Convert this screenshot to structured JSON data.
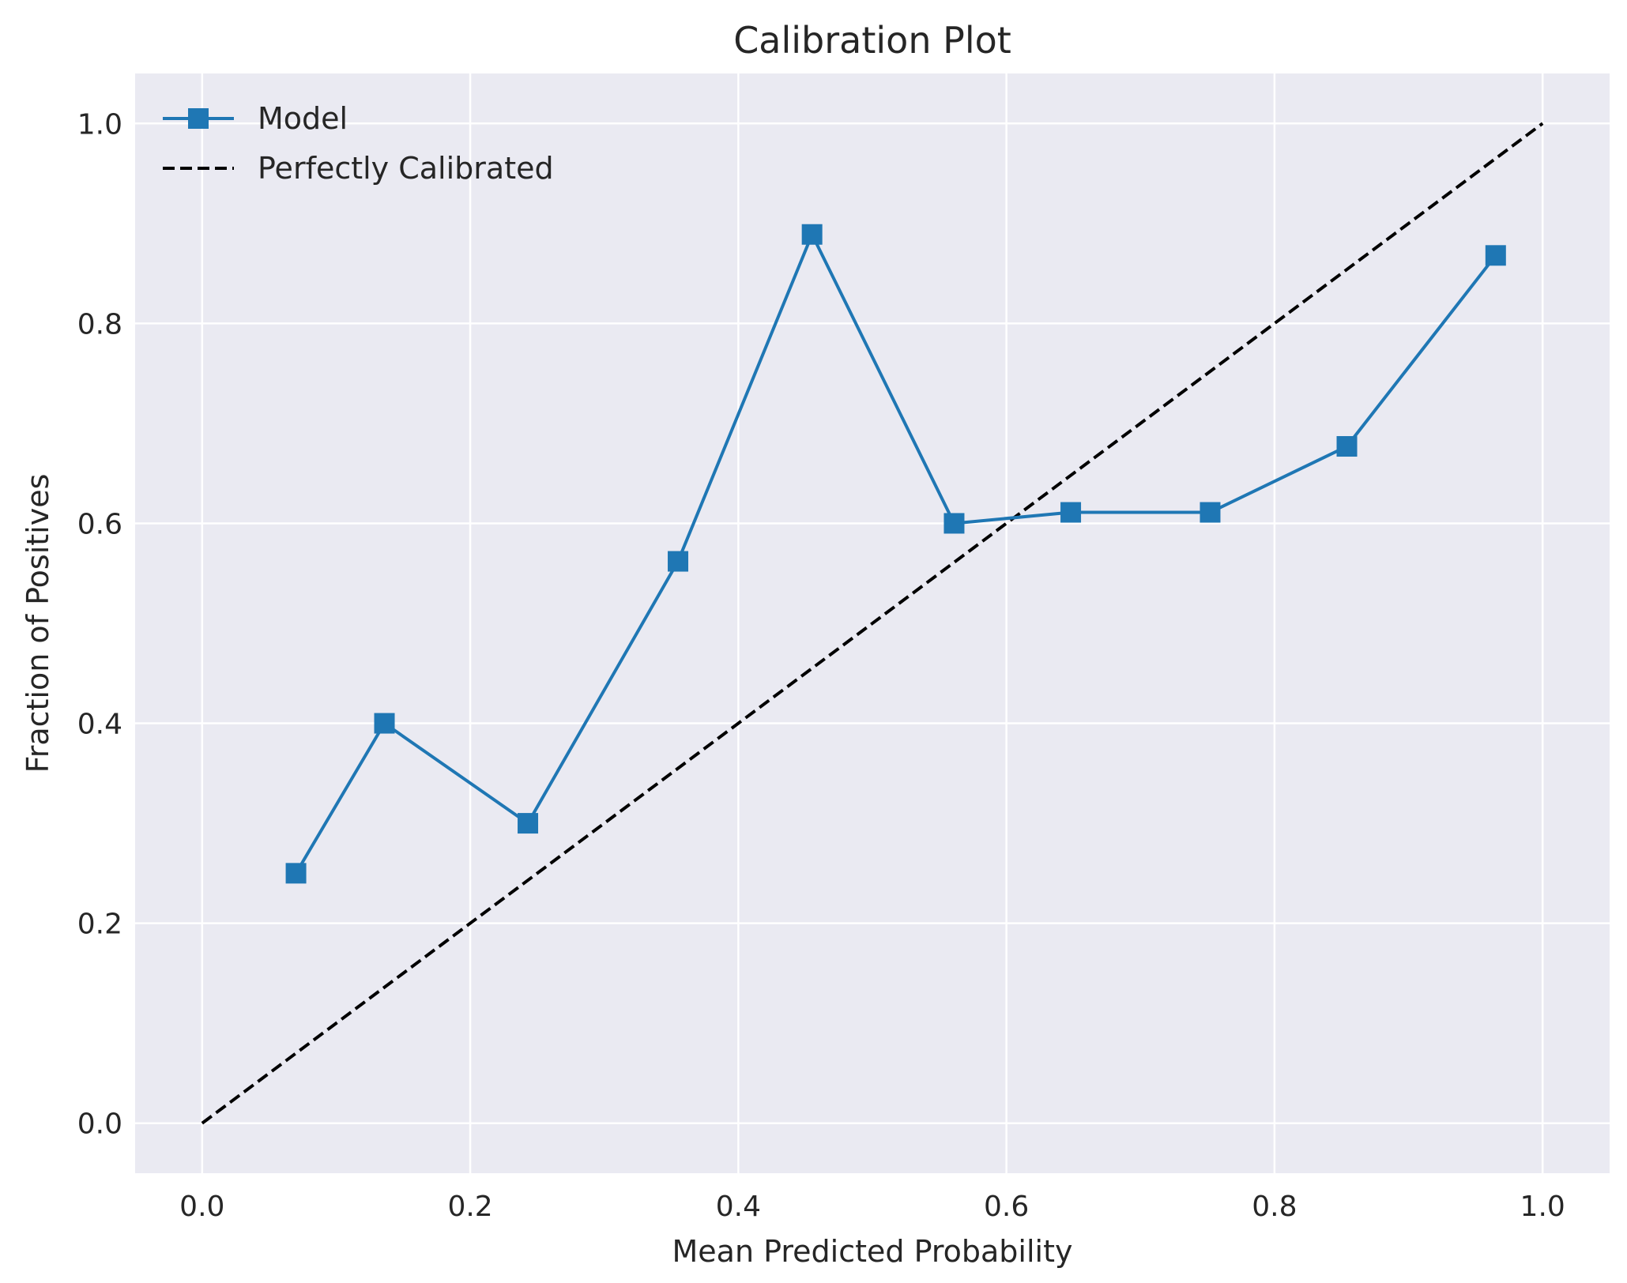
{
  "chart_data": {
    "type": "line",
    "title": "Calibration Plot",
    "xlabel": "Mean Predicted Probability",
    "ylabel": "Fraction of Positives",
    "xlim": [
      -0.05,
      1.05
    ],
    "ylim": [
      -0.05,
      1.05
    ],
    "xticks": [
      0.0,
      0.2,
      0.4,
      0.6,
      0.8,
      1.0
    ],
    "xtick_labels": [
      "0.0",
      "0.2",
      "0.4",
      "0.6",
      "0.8",
      "1.0"
    ],
    "yticks": [
      0.0,
      0.2,
      0.4,
      0.6,
      0.8,
      1.0
    ],
    "ytick_labels": [
      "0.0",
      "0.2",
      "0.4",
      "0.6",
      "0.8",
      "1.0"
    ],
    "grid": true,
    "legend_position": "top-left",
    "background": "#eaeaf2",
    "series": [
      {
        "name": "Model",
        "style": "solid-line-square-markers",
        "color": "#1f77b4",
        "x": [
          0.07,
          0.136,
          0.243,
          0.355,
          0.455,
          0.561,
          0.648,
          0.752,
          0.854,
          0.965
        ],
        "y": [
          0.25,
          0.4,
          0.3,
          0.562,
          0.889,
          0.6,
          0.611,
          0.611,
          0.677,
          0.868
        ]
      },
      {
        "name": "Perfectly Calibrated",
        "style": "dashed-line",
        "color": "#000000",
        "x": [
          0.0,
          1.0
        ],
        "y": [
          0.0,
          1.0
        ]
      }
    ]
  }
}
